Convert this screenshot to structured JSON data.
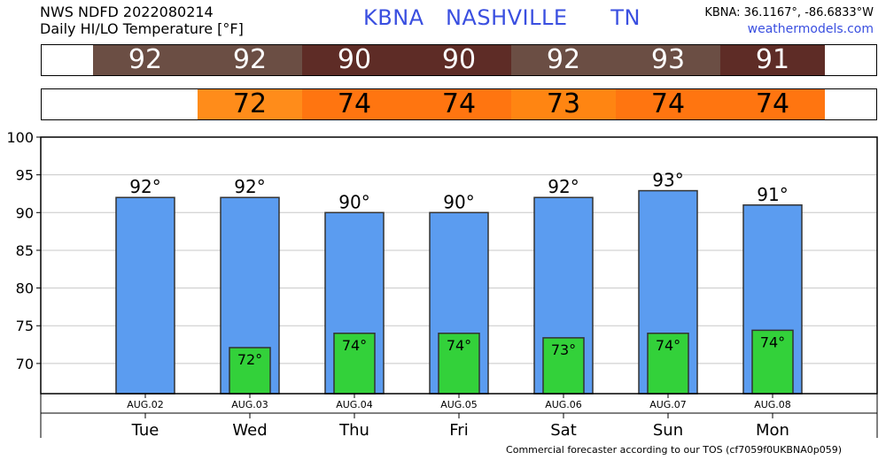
{
  "header": {
    "left_line1": "NWS NDFD 2022080214",
    "left_line2": "Daily HI/LO Temperature [°F]",
    "title": "KBNA   NASHVILLE      TN",
    "coords": "KBNA: 36.1167°, -86.6833°W",
    "site": "weathermodels.com"
  },
  "strips": {
    "hi": [
      {
        "value": "92",
        "color": "#6b4e44"
      },
      {
        "value": "92",
        "color": "#6b4e44"
      },
      {
        "value": "90",
        "color": "#5e2c26"
      },
      {
        "value": "90",
        "color": "#5e2c26"
      },
      {
        "value": "92",
        "color": "#6b4e44"
      },
      {
        "value": "93",
        "color": "#6b4e44"
      },
      {
        "value": "91",
        "color": "#5e2c26"
      }
    ],
    "lo": [
      {
        "value": "72",
        "color": "#ff8c1a"
      },
      {
        "value": "74",
        "color": "#ff7510"
      },
      {
        "value": "74",
        "color": "#ff7510"
      },
      {
        "value": "73",
        "color": "#ff8512"
      },
      {
        "value": "74",
        "color": "#ff7510"
      },
      {
        "value": "74",
        "color": "#ff7510"
      }
    ]
  },
  "chart_data": {
    "type": "bar",
    "categories": [
      "AUG.02",
      "AUG.03",
      "AUG.04",
      "AUG.05",
      "AUG.06",
      "AUG.07",
      "AUG.08"
    ],
    "day_labels": [
      "Tue",
      "Wed",
      "Thu",
      "Fri",
      "Sat",
      "Sun",
      "Mon"
    ],
    "series": [
      {
        "values": [
          92,
          92,
          90,
          90,
          92,
          92.9,
          91
        ],
        "labels": [
          "92°",
          "92°",
          "90°",
          "90°",
          "92°",
          "93°",
          "91°"
        ],
        "color": "#5b9cf0"
      },
      {
        "values": [
          null,
          72.1,
          74,
          74,
          73.4,
          74,
          74.4
        ],
        "labels": [
          "",
          "72°",
          "74°",
          "74°",
          "73°",
          "74°",
          "74°"
        ],
        "color": "#33d13a"
      }
    ],
    "ylim": [
      66,
      100
    ],
    "yticks": [
      70,
      75,
      80,
      85,
      90,
      95,
      100
    ],
    "grid": true
  },
  "footer": "Commercial forecaster according to our TOS (cf7059f0UKBNA0p059)"
}
